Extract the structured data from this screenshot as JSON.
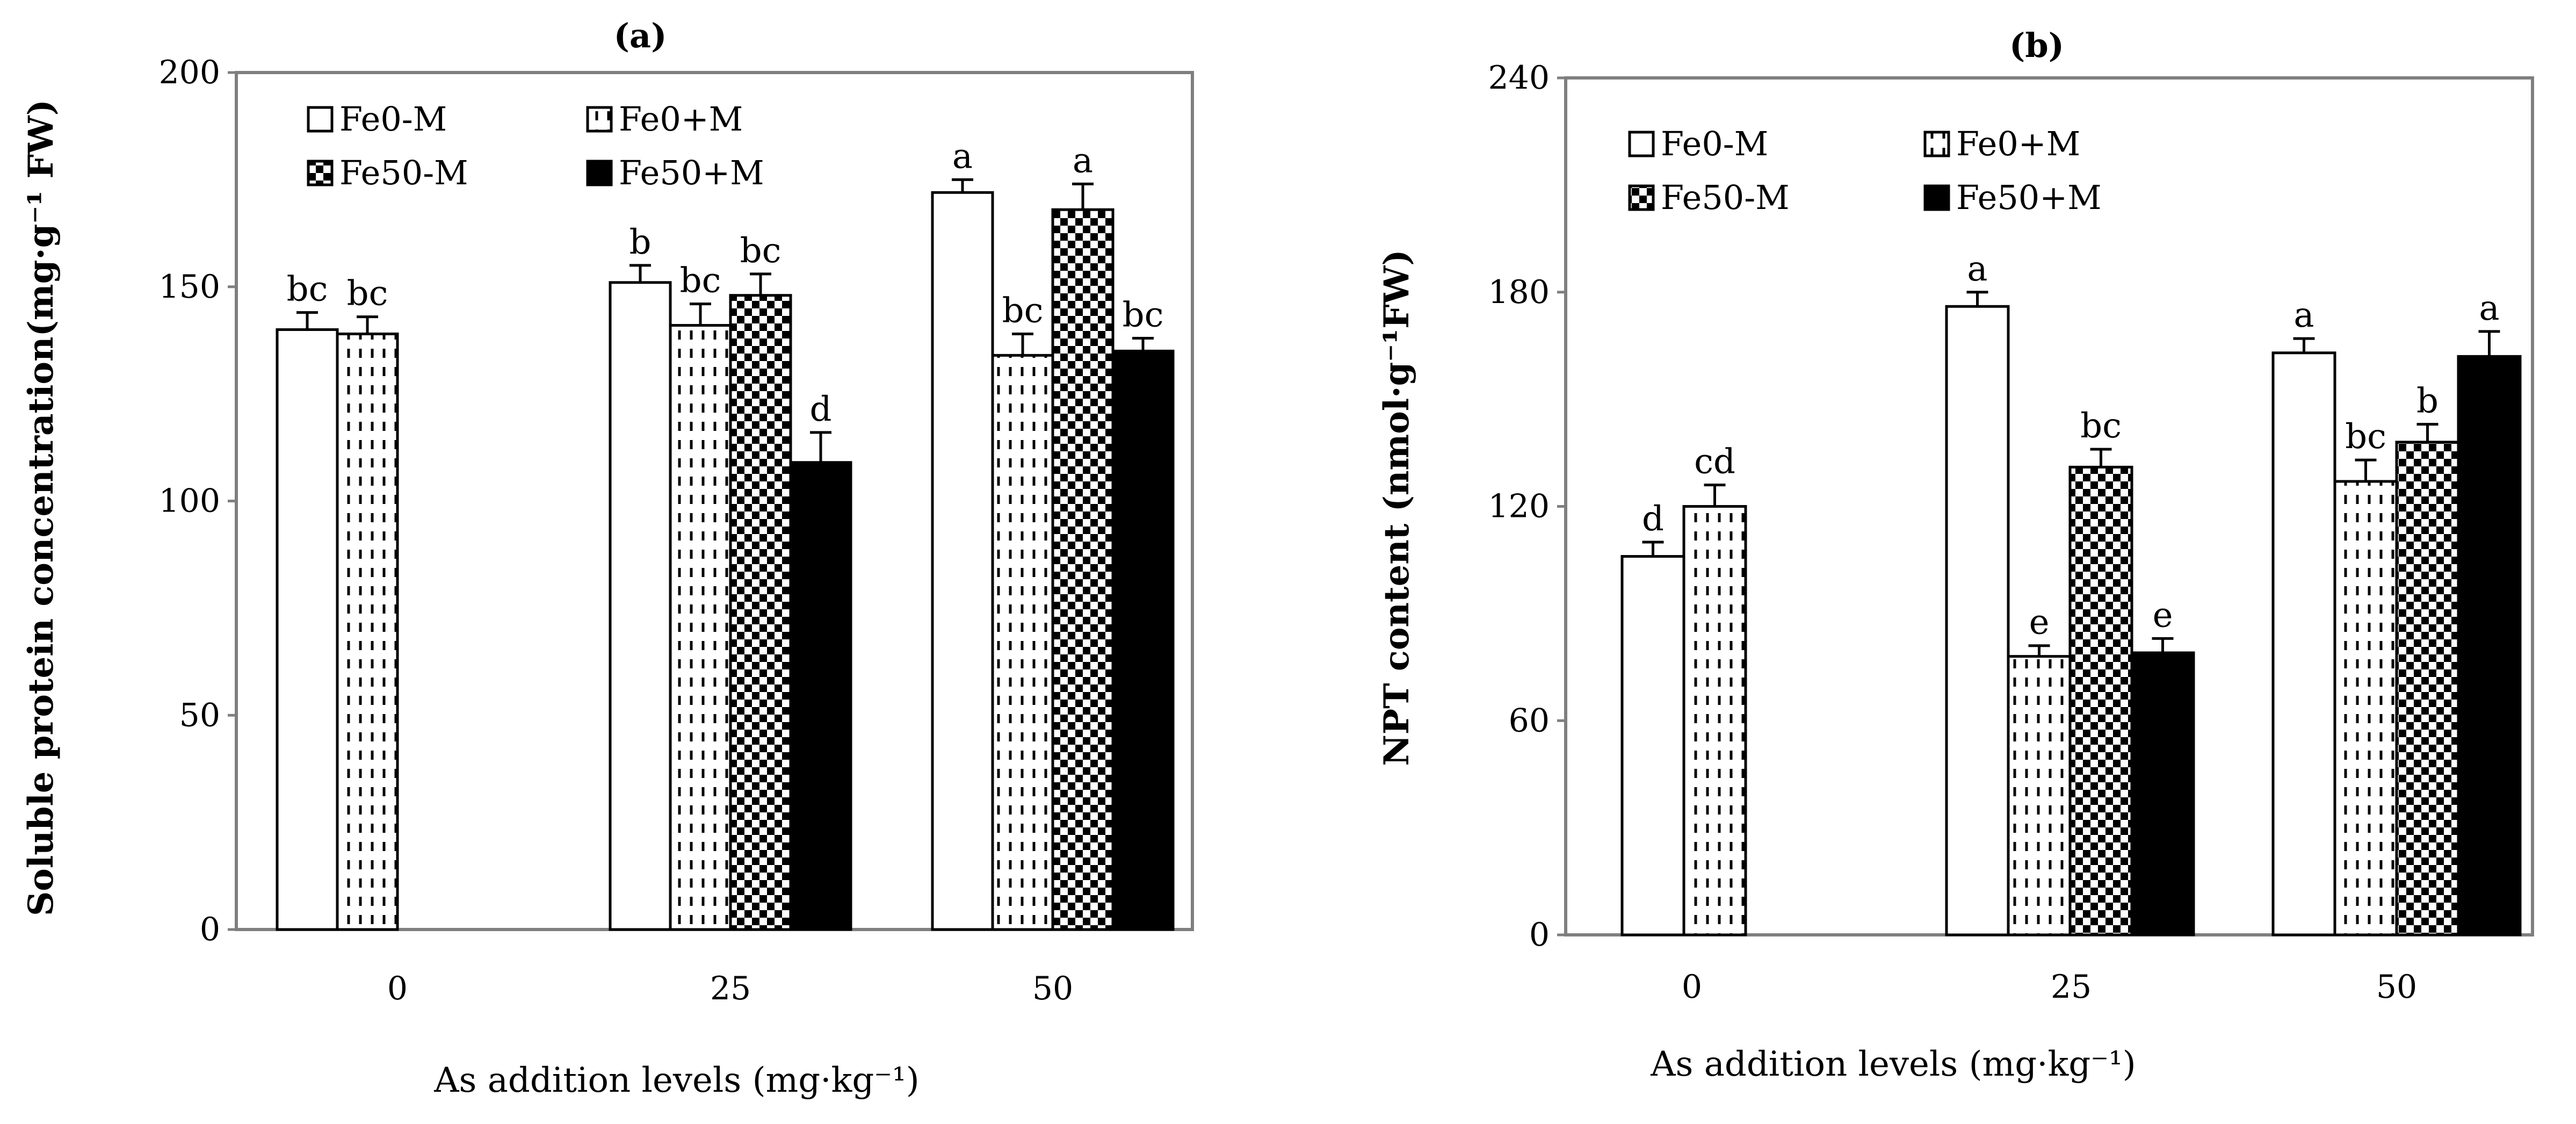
{
  "chart_data": [
    {
      "type": "bar",
      "title": "(a)",
      "xlabel": "As addition levels (mg·kg⁻¹)",
      "ylabel": "Soluble protein concentration(mg·g⁻¹ FW)",
      "ylim": [
        0,
        200
      ],
      "yticks": [
        0,
        50,
        100,
        150,
        200
      ],
      "categories": [
        "0",
        "25",
        "50"
      ],
      "legend_position": "top-left",
      "series": [
        {
          "name": "Fe0-M",
          "pattern": "white",
          "values": [
            140,
            151,
            172
          ],
          "errors": [
            4,
            4,
            3
          ],
          "letters": [
            "bc",
            "b",
            "a"
          ]
        },
        {
          "name": "Fe0+M",
          "pattern": "dashed",
          "values": [
            139,
            141,
            134
          ],
          "errors": [
            4,
            5,
            5
          ],
          "letters": [
            "bc",
            "bc",
            "bc"
          ]
        },
        {
          "name": "Fe50-M",
          "pattern": "checker",
          "values": [
            null,
            148,
            168
          ],
          "errors": [
            null,
            5,
            6
          ],
          "letters": [
            null,
            "bc",
            "a"
          ]
        },
        {
          "name": "Fe50+M",
          "pattern": "black",
          "values": [
            null,
            109,
            135
          ],
          "errors": [
            null,
            7,
            3
          ],
          "letters": [
            null,
            "d",
            "bc"
          ]
        }
      ]
    },
    {
      "type": "bar",
      "title": "(b)",
      "xlabel": "As addition levels (mg·kg⁻¹)",
      "ylabel": "NPT content (nmol·g⁻¹FW)",
      "ylim": [
        0,
        240
      ],
      "yticks": [
        0,
        60,
        120,
        180,
        240
      ],
      "categories": [
        "0",
        "25",
        "50"
      ],
      "legend_position": "top-left",
      "series": [
        {
          "name": "Fe0-M",
          "pattern": "white",
          "values": [
            106,
            176,
            163
          ],
          "errors": [
            4,
            4,
            4
          ],
          "letters": [
            "d",
            "a",
            "a"
          ]
        },
        {
          "name": "Fe0+M",
          "pattern": "dashed",
          "values": [
            120,
            78,
            127
          ],
          "errors": [
            6,
            3,
            6
          ],
          "letters": [
            "cd",
            "e",
            "bc"
          ]
        },
        {
          "name": "Fe50-M",
          "pattern": "checker",
          "values": [
            null,
            131,
            138
          ],
          "errors": [
            null,
            5,
            5
          ],
          "letters": [
            null,
            "bc",
            "b"
          ]
        },
        {
          "name": "Fe50+M",
          "pattern": "black",
          "values": [
            null,
            79,
            162
          ],
          "errors": [
            null,
            4,
            7
          ],
          "letters": [
            null,
            "e",
            "a"
          ]
        }
      ]
    }
  ]
}
